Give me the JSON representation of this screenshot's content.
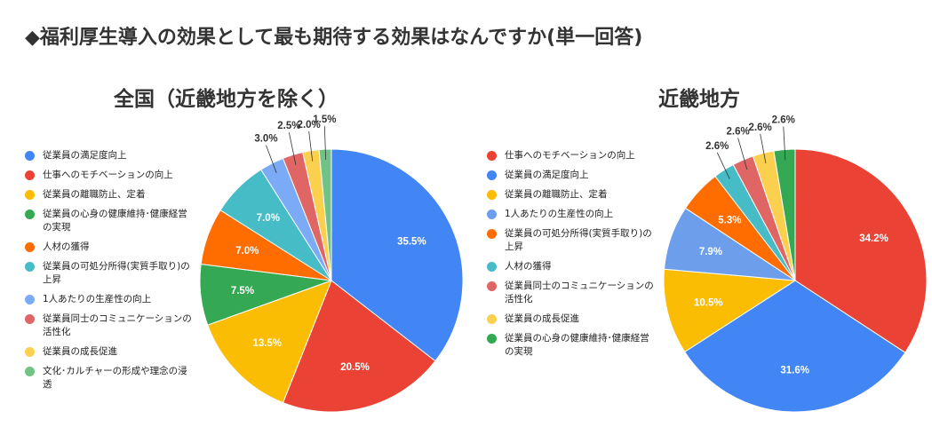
{
  "title": "◆福利厚生導入の効果として最も期待する効果はなんですか(単一回答)",
  "chart_data": [
    {
      "type": "pie",
      "title": "全国（近畿地方を除く）",
      "legend_position": "left",
      "labels": [
        "従業員の満足度向上",
        "仕事へのモチベーションの向上",
        "従業員の離職防止、定着",
        "従業員の心身の健康維持･健康経営の実現",
        "人材の獲得",
        "従業員の可処分所得(実質手取り)の上昇",
        "1人あたりの生産性の向上",
        "従業員同士のコミュニケーションの活性化",
        "従業員の成長促進",
        "文化･カルチャーの形成や理念の浸透"
      ],
      "values": [
        35.5,
        20.5,
        13.5,
        7.5,
        7.0,
        7.0,
        3.0,
        2.5,
        2.0,
        1.5
      ],
      "data_labels": [
        "35.5%",
        "20.5%",
        "13.5%",
        "7.5%",
        "7.0%",
        "7.0%",
        "3.0%",
        "2.5%",
        "2.0%",
        "1.5%"
      ],
      "colors": [
        "#4285F4",
        "#EA4335",
        "#FBBC04",
        "#34A853",
        "#FF6D01",
        "#46BDC6",
        "#7BAAF7",
        "#E06666",
        "#FCD04F",
        "#71C287"
      ]
    },
    {
      "type": "pie",
      "title": "近畿地方",
      "legend_position": "left",
      "labels": [
        "仕事へのモチベーションの向上",
        "従業員の満足度向上",
        "従業員の離職防止、定着",
        "1人あたりの生産性の向上",
        "従業員の可処分所得(実質手取り)の上昇",
        "人材の獲得",
        "従業員同士のコミュニケーションの活性化",
        "従業員の成長促進",
        "従業員の心身の健康維持･健康経営の実現"
      ],
      "values": [
        34.2,
        31.6,
        10.5,
        7.9,
        5.3,
        2.6,
        2.6,
        2.6,
        2.6
      ],
      "data_labels": [
        "34.2%",
        "31.6%",
        "10.5%",
        "7.9%",
        "5.3%",
        "2.6%",
        "2.6%",
        "2.6%",
        "2.6%"
      ],
      "colors": [
        "#EA4335",
        "#4285F4",
        "#FBBC04",
        "#6D9EEB",
        "#FF6D01",
        "#46BDC6",
        "#E06666",
        "#FCD04F",
        "#34A853"
      ]
    }
  ]
}
